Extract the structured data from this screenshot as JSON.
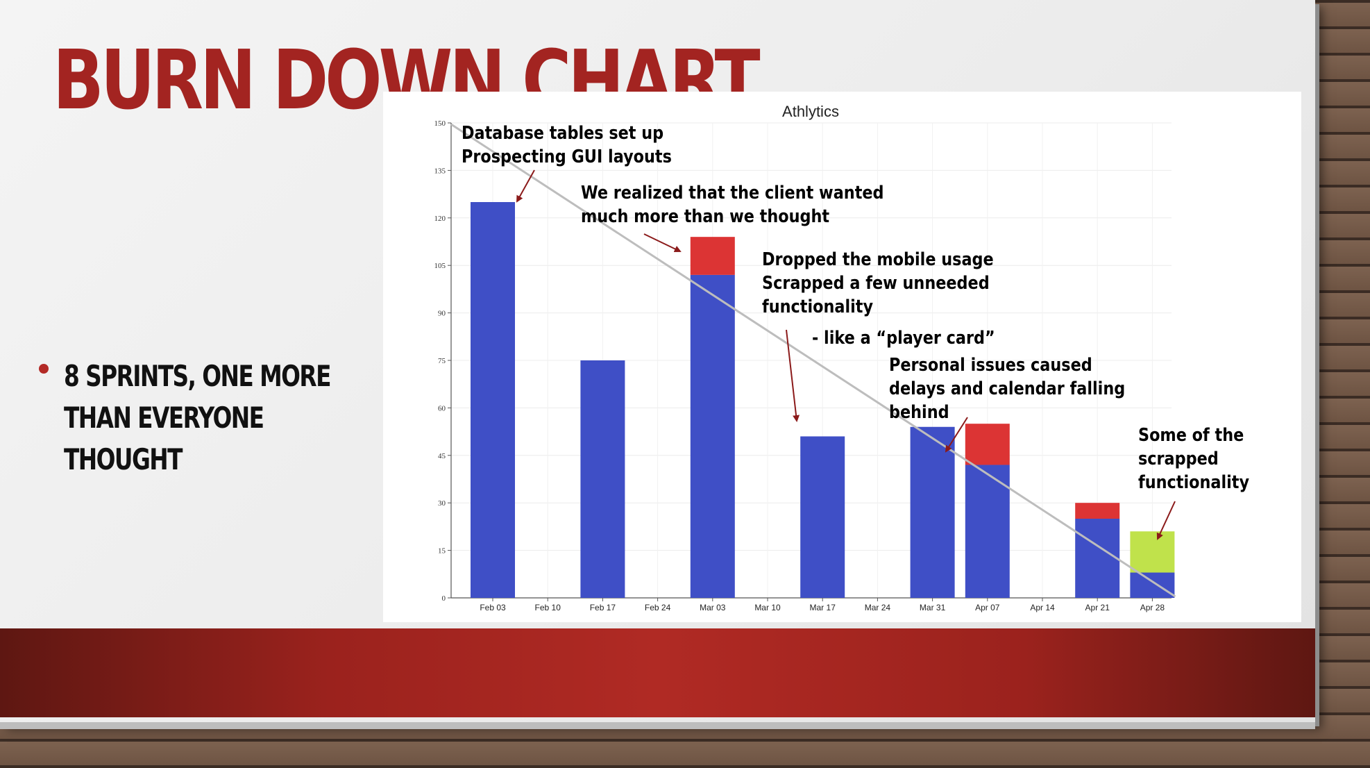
{
  "slide": {
    "title": "BURN DOWN CHART",
    "bullet": "8 sprints, one more than everyone thought"
  },
  "colors": {
    "title": "#a32421",
    "completed": "#3f4fc6",
    "added_scope": "#dc3434",
    "scrapped_scope": "#c0e24b",
    "ideal_line": "#bdbdbd",
    "arrow": "#8b1a1a",
    "band": "#b02a24"
  },
  "chart_data": {
    "type": "bar",
    "title": "Athlytics",
    "xlabel": "",
    "ylabel": "",
    "ylim": [
      0,
      150
    ],
    "yticks": [
      0,
      15,
      30,
      45,
      60,
      75,
      90,
      105,
      120,
      135,
      150
    ],
    "xticks": [
      "Feb 03",
      "Feb 10",
      "Feb 17",
      "Feb 24",
      "Mar 03",
      "Mar 10",
      "Mar 17",
      "Mar 24",
      "Mar 31",
      "Apr 07",
      "Apr 14",
      "Apr 21",
      "Apr 28"
    ],
    "grid": true,
    "legend": "none",
    "bars": [
      {
        "x": "Feb 03",
        "completed": 125,
        "added": 0,
        "scrapped": 0
      },
      {
        "x": "Feb 17",
        "completed": 75,
        "added": 0,
        "scrapped": 0
      },
      {
        "x": "Mar 03",
        "completed": 102,
        "added": 12,
        "scrapped": 0
      },
      {
        "x": "Mar 17",
        "completed": 51,
        "added": 0,
        "scrapped": 0
      },
      {
        "x": "Mar 31",
        "completed": 54,
        "added": 0,
        "scrapped": 0
      },
      {
        "x": "Apr 07",
        "completed": 42,
        "added": 13,
        "scrapped": 0
      },
      {
        "x": "Apr 21",
        "completed": 25,
        "added": 5,
        "scrapped": 0
      },
      {
        "x": "Apr 28",
        "completed": 8,
        "added": 0,
        "scrapped": 13
      }
    ],
    "ideal_line": {
      "from": [
        "Feb 03",
        150
      ],
      "to": [
        "Apr 28",
        0
      ]
    },
    "annotations": [
      {
        "lines": [
          "Database tables set up",
          "Prospecting GUI layouts"
        ],
        "target": "Feb 03"
      },
      {
        "lines": [
          "We realized that the client wanted",
          "much more than we thought"
        ],
        "target": "Mar 03"
      },
      {
        "lines": [
          "Dropped the mobile usage",
          "Scrapped a few unneeded",
          "functionality"
        ],
        "target": "Mar 17"
      },
      {
        "lines": [
          "- like a “player card”"
        ],
        "target": ""
      },
      {
        "lines": [
          "Personal issues caused",
          "delays and calendar falling",
          "behind"
        ],
        "target": "Apr 07"
      },
      {
        "lines": [
          "Some of the",
          "scrapped",
          "functionality"
        ],
        "target": "Apr 28"
      }
    ]
  }
}
